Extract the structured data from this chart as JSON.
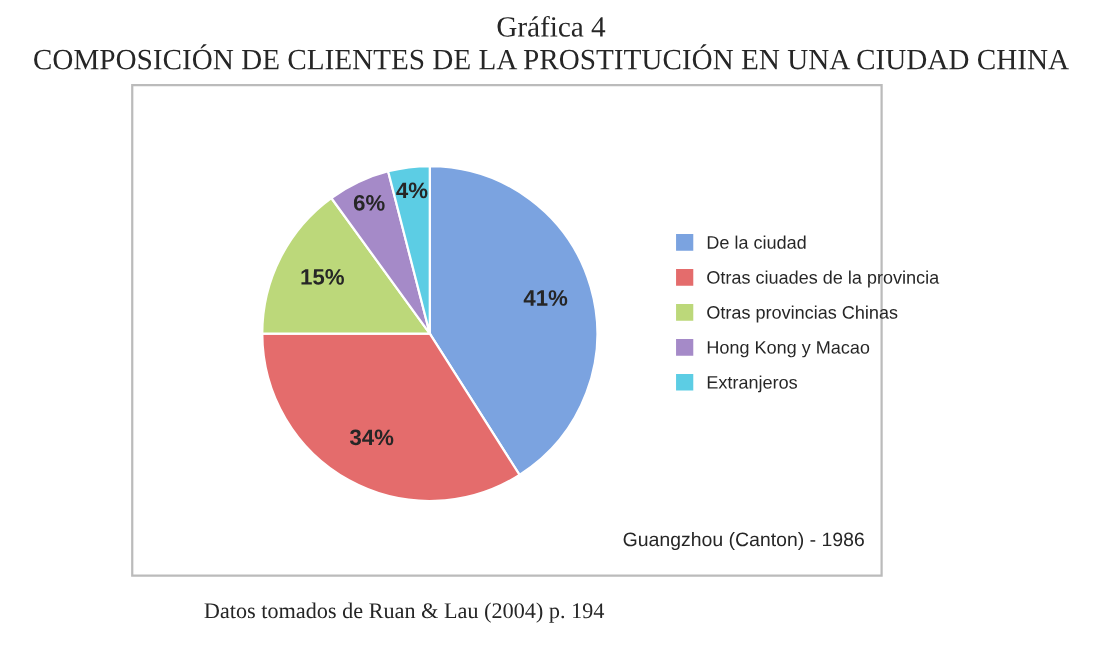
{
  "chart_data": {
    "type": "pie",
    "title": "Gráfica 4",
    "subtitle": "COMPOSICIÓN DE CLIENTES DE LA PROSTITUCIÓN EN UNA CIUDAD CHINA",
    "categories": [
      "De la ciudad",
      "Otras ciuades de la provincia",
      "Otras provincias Chinas",
      "Hong Kong y Macao",
      "Extranjeros"
    ],
    "values": [
      41,
      34,
      15,
      6,
      4
    ],
    "colors": [
      "#7ba3e0",
      "#e46c6c",
      "#bcd87a",
      "#a58ac8",
      "#5ccde4"
    ],
    "value_labels": [
      "41%",
      "34%",
      "15%",
      "6%",
      "4%"
    ],
    "legend": "right",
    "annotations": [
      "Guangzhou (Canton) - 1986",
      "Datos tomados de Ruan & Lau (2004) p. 194"
    ]
  }
}
